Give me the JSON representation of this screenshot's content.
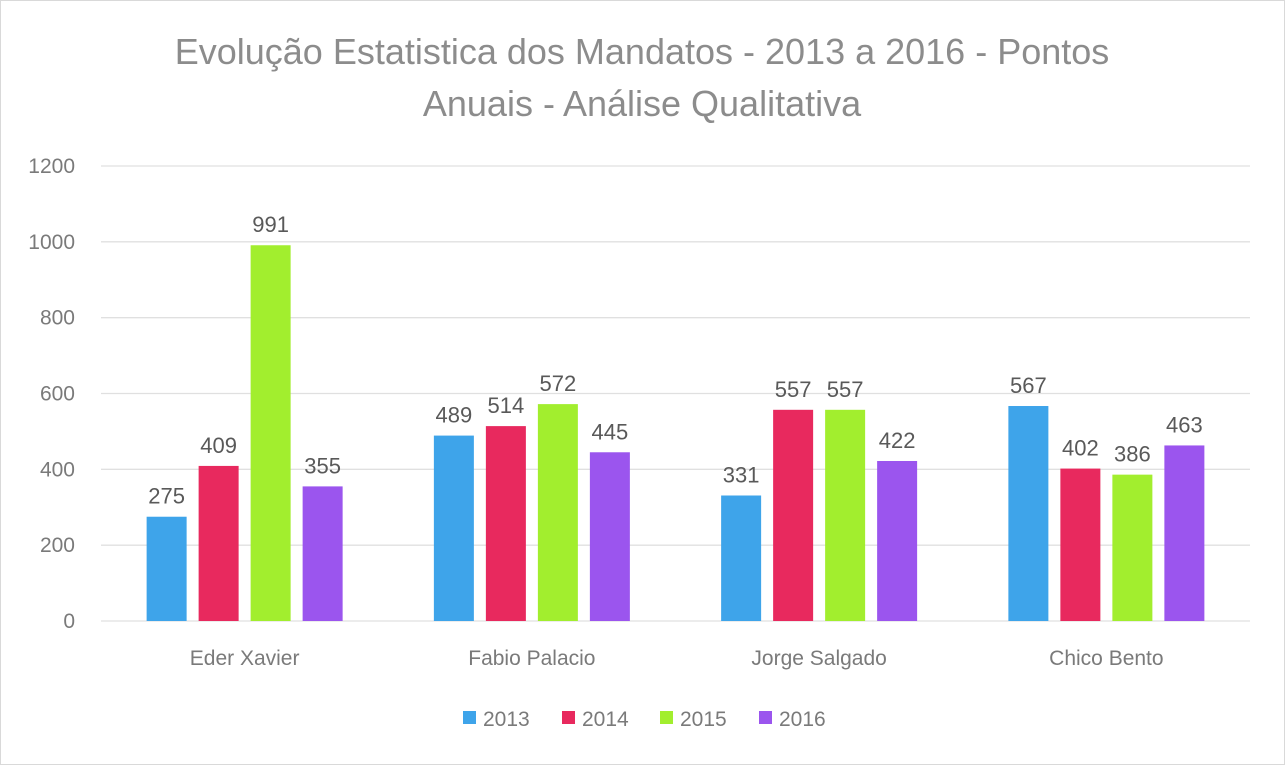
{
  "chart_data": {
    "type": "bar",
    "title_lines": [
      "Evolução Estatistica dos Mandatos - 2013 a 2016 - Pontos",
      "Anuais - Análise Qualitativa"
    ],
    "categories": [
      "Eder Xavier",
      "Fabio Palacio",
      "Jorge Salgado",
      "Chico Bento"
    ],
    "series": [
      {
        "name": "2013",
        "color": "#3EA4EA",
        "values": [
          275,
          489,
          331,
          567
        ]
      },
      {
        "name": "2014",
        "color": "#E8295E",
        "values": [
          409,
          514,
          557,
          402
        ]
      },
      {
        "name": "2015",
        "color": "#A2EE2E",
        "values": [
          991,
          572,
          557,
          386
        ]
      },
      {
        "name": "2016",
        "color": "#9B55EE",
        "values": [
          355,
          445,
          422,
          463
        ]
      }
    ],
    "ylim": [
      0,
      1200
    ],
    "yticks": [
      "0",
      "200",
      "400",
      "600",
      "800",
      "1000",
      "1200"
    ],
    "xlabel": "",
    "ylabel": "",
    "grid": true,
    "legend": "bottom",
    "data_labels": true
  }
}
